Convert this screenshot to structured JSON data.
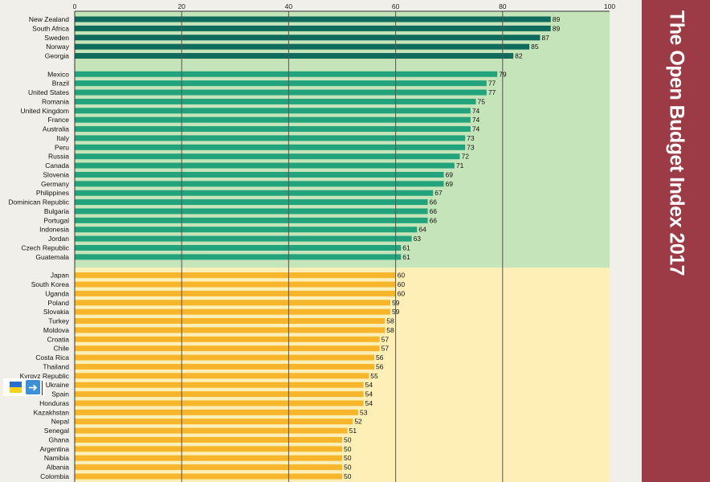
{
  "chart_data": {
    "type": "bar",
    "orientation": "horizontal",
    "title": "The Open Budget Index 2017",
    "xlim": [
      0,
      100
    ],
    "xticks": [
      0,
      20,
      40,
      60,
      80,
      100
    ],
    "grid": true,
    "categories": [
      "New Zealand",
      "South Africa",
      "Sweden",
      "Norway",
      "Georgia",
      null,
      "Mexico",
      "Brazil",
      "United States",
      "Romania",
      "United Kingdom",
      "France",
      "Australia",
      "Italy",
      "Peru",
      "Russia",
      "Canada",
      "Slovenia",
      "Germany",
      "Philippines",
      "Dominican Republic",
      "Bulgaria",
      "Portugal",
      "Indonesia",
      "Jordan",
      "Czech Republic",
      "Guatemala",
      null,
      "Japan",
      "South Korea",
      "Uganda",
      "Poland",
      "Slovakia",
      "Turkey",
      "Moldova",
      "Croatia",
      "Chile",
      "Costa Rica",
      "Thailand",
      "Kyrgyz Republic",
      "Ukraine",
      "Spain",
      "Honduras",
      "Kazakhstan",
      "Nepal",
      "Senegal",
      "Ghana",
      "Argentina",
      "Namibia",
      "Albania",
      "Colombia"
    ],
    "values": [
      89,
      89,
      87,
      85,
      82,
      null,
      79,
      77,
      77,
      75,
      74,
      74,
      74,
      73,
      73,
      72,
      71,
      69,
      69,
      67,
      66,
      66,
      66,
      64,
      63,
      61,
      61,
      null,
      60,
      60,
      60,
      59,
      59,
      58,
      58,
      57,
      57,
      56,
      56,
      55,
      54,
      54,
      54,
      53,
      52,
      51,
      50,
      50,
      50,
      50,
      50
    ],
    "highlight": "Ukraine",
    "colors": {
      "extensive": "#0f6b5c",
      "substantial": "#22a37c",
      "limited": "#f7b52b",
      "bg_green": "#c6e4b9",
      "bg_yellow": "#fdefb6",
      "grid": "#555555"
    }
  }
}
